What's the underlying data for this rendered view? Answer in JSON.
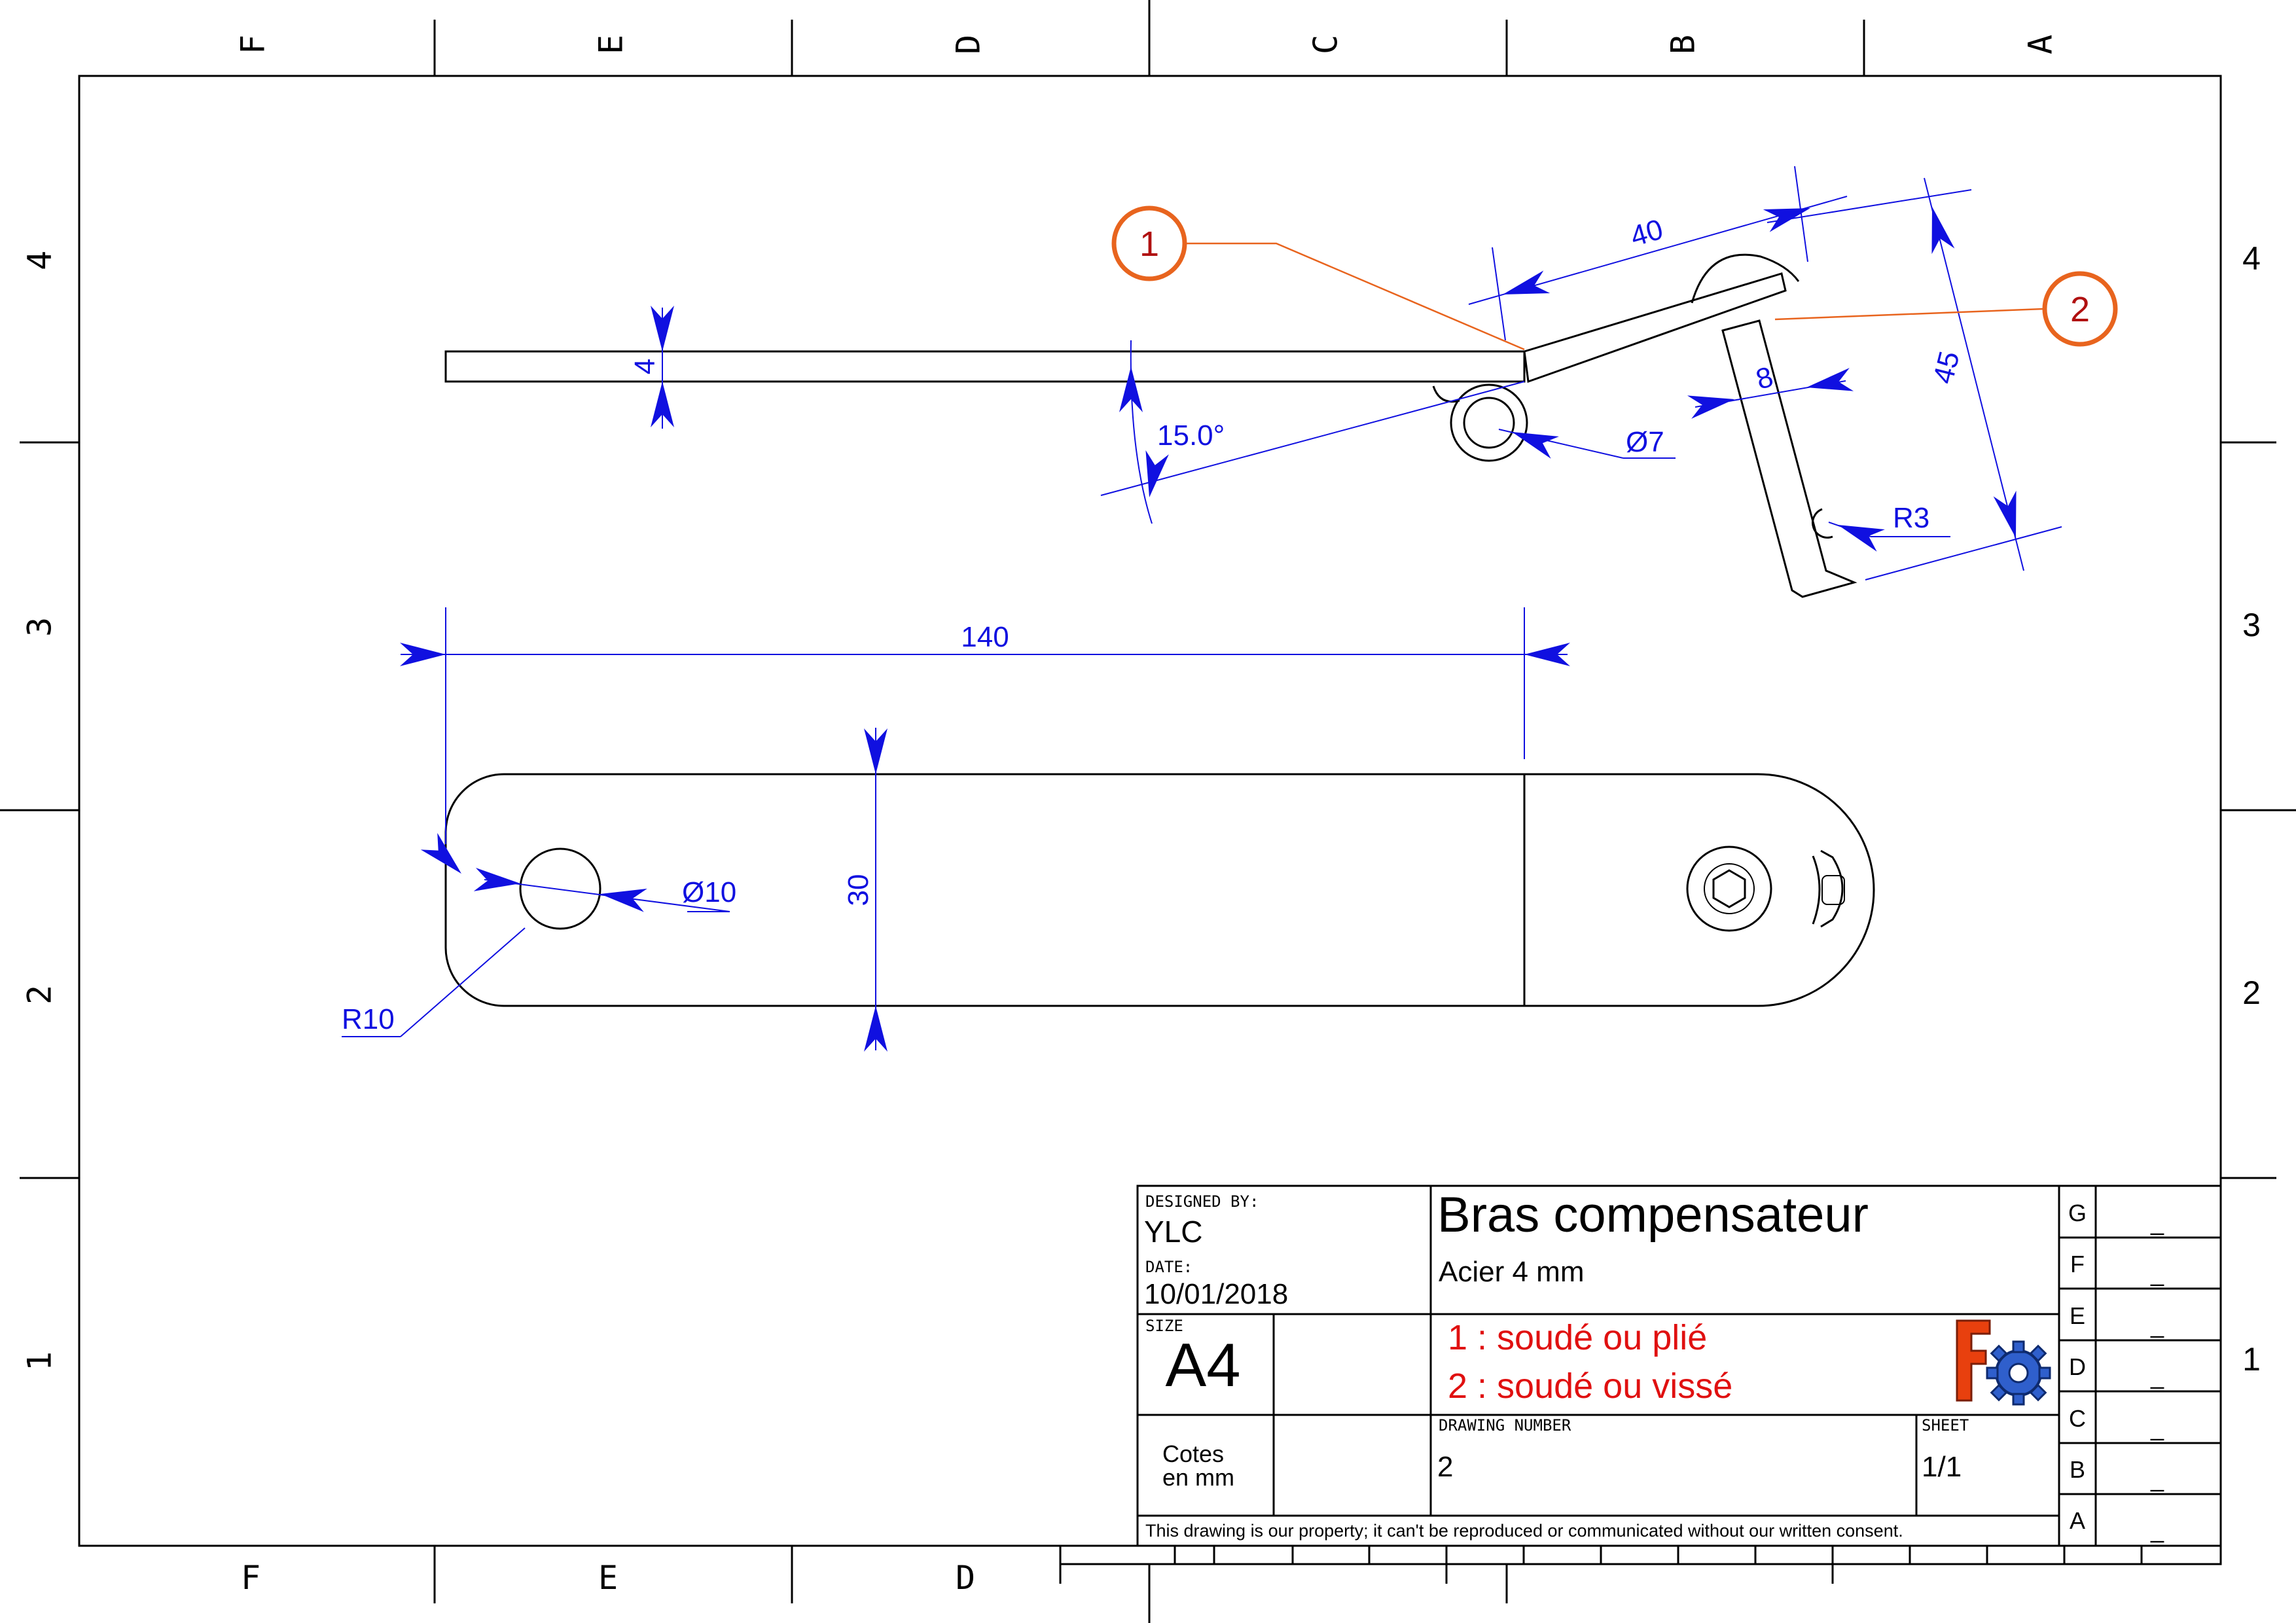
{
  "zones": {
    "columns": [
      "F",
      "E",
      "D",
      "C",
      "B",
      "A"
    ],
    "rows": [
      "4",
      "3",
      "2",
      "1"
    ]
  },
  "dimensions": {
    "thickness": "4",
    "angle": "15.0°",
    "flange_length": "40",
    "flange_width": "8",
    "tab_height": "45",
    "hole_small": "Ø7",
    "notch_radius": "R3",
    "overall_length": "140",
    "hole_large": "Ø10",
    "width": "30",
    "end_radius": "R10"
  },
  "balloons": [
    "1",
    "2"
  ],
  "title_block": {
    "designed_by_label": "DESIGNED BY:",
    "designed_by": "YLC",
    "date_label": "DATE:",
    "date": "10/01/2018",
    "size_label": "SIZE",
    "size": "A4",
    "title": "Bras compensateur",
    "subtitle": "Acier 4 mm",
    "note_1": "1 : soudé ou plié",
    "note_2": "2 : soudé ou vissé",
    "units_line1": "Cotes",
    "units_line2": "en mm",
    "drawing_number_label": "DRAWING NUMBER",
    "drawing_number": "2",
    "sheet_label": "SHEET",
    "sheet": "1/1",
    "disclaimer": "This drawing is our property; it can't be reproduced or communicated without our written consent."
  },
  "revisions": [
    {
      "letter": "G",
      "value": "_"
    },
    {
      "letter": "F",
      "value": "_"
    },
    {
      "letter": "E",
      "value": "_"
    },
    {
      "letter": "D",
      "value": "_"
    },
    {
      "letter": "C",
      "value": "_"
    },
    {
      "letter": "B",
      "value": "_"
    },
    {
      "letter": "A",
      "value": "_"
    }
  ],
  "colors": {
    "dimension": "#1010e0",
    "balloon": "#e8641e",
    "note": "#e01010"
  }
}
